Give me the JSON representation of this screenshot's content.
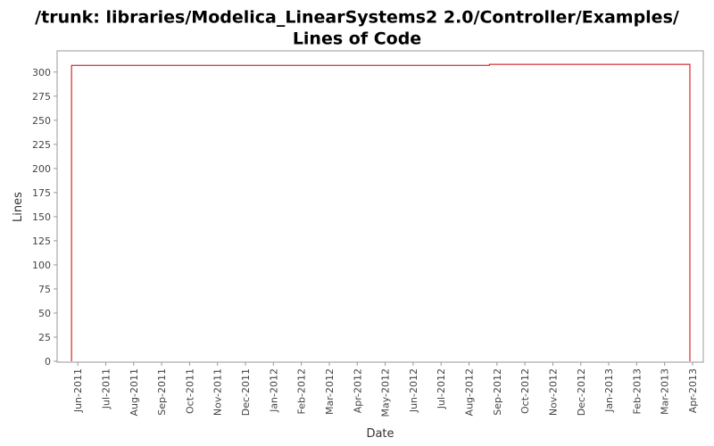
{
  "chart_data": {
    "type": "line",
    "title": [
      "/trunk: libraries/Modelica_LinearSystems2 2.0/Controller/Examples/",
      "Lines of Code"
    ],
    "x_label": "Date",
    "y_label": "Lines",
    "x": [
      2011.398,
      2011.398,
      2012.644,
      2012.644,
      2013.242,
      2013.242
    ],
    "series": [
      {
        "color": "#cc0000",
        "values": [
          0,
          307,
          307,
          308,
          308,
          0
        ]
      }
    ],
    "xlim": [
      2011.355,
      2013.282
    ],
    "xticks": [
      {
        "value": 2011.4167,
        "label": "Jun-2011"
      },
      {
        "value": 2011.5,
        "label": "Jul-2011"
      },
      {
        "value": 2011.5833,
        "label": "Aug-2011"
      },
      {
        "value": 2011.6667,
        "label": "Sep-2011"
      },
      {
        "value": 2011.75,
        "label": "Oct-2011"
      },
      {
        "value": 2011.8333,
        "label": "Nov-2011"
      },
      {
        "value": 2011.9167,
        "label": "Dec-2011"
      },
      {
        "value": 2012.0,
        "label": "Jan-2012"
      },
      {
        "value": 2012.0833,
        "label": "Feb-2012"
      },
      {
        "value": 2012.1667,
        "label": "Mar-2012"
      },
      {
        "value": 2012.25,
        "label": "Apr-2012"
      },
      {
        "value": 2012.3333,
        "label": "May-2012"
      },
      {
        "value": 2012.4167,
        "label": "Jun-2012"
      },
      {
        "value": 2012.5,
        "label": "Jul-2012"
      },
      {
        "value": 2012.5833,
        "label": "Aug-2012"
      },
      {
        "value": 2012.6667,
        "label": "Sep-2012"
      },
      {
        "value": 2012.75,
        "label": "Oct-2012"
      },
      {
        "value": 2012.8333,
        "label": "Nov-2012"
      },
      {
        "value": 2012.9167,
        "label": "Dec-2012"
      },
      {
        "value": 2013.0,
        "label": "Jan-2013"
      },
      {
        "value": 2013.0833,
        "label": "Feb-2013"
      },
      {
        "value": 2013.1667,
        "label": "Mar-2013"
      },
      {
        "value": 2013.25,
        "label": "Apr-2013"
      }
    ],
    "ylim": [
      0,
      322
    ],
    "yticks": [
      0,
      25,
      50,
      75,
      100,
      125,
      150,
      175,
      200,
      225,
      250,
      275,
      300
    ],
    "grid": false
  }
}
